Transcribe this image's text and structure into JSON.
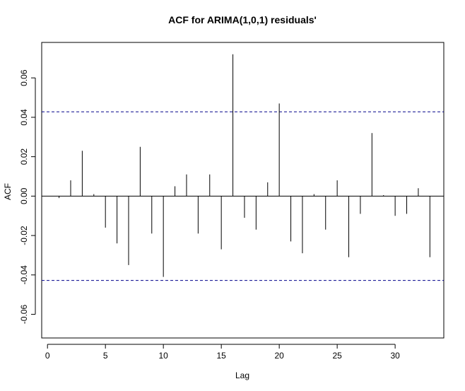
{
  "chart_data": {
    "type": "bar",
    "title": "ACF for ARIMA(1,0,1) residuals'",
    "xlabel": "Lag",
    "ylabel": "ACF",
    "xlim": [
      -0.5,
      34.2
    ],
    "ylim": [
      -0.072,
      0.078
    ],
    "xticks": [
      0,
      5,
      10,
      15,
      20,
      25,
      30
    ],
    "yticks": [
      -0.06,
      -0.04,
      -0.02,
      0.0,
      0.02,
      0.04,
      0.06
    ],
    "ytick_labels": [
      "-0.06",
      "-0.04",
      "-0.02",
      "0.00",
      "0.02",
      "0.04",
      "0.06"
    ],
    "grid": false,
    "confidence_bound": 0.0428,
    "lags": [
      1,
      2,
      3,
      4,
      5,
      6,
      7,
      8,
      9,
      10,
      11,
      12,
      13,
      14,
      15,
      16,
      17,
      18,
      19,
      20,
      21,
      22,
      23,
      24,
      25,
      26,
      27,
      28,
      29,
      30,
      31,
      32,
      33
    ],
    "values": [
      -0.001,
      0.008,
      0.023,
      0.001,
      -0.016,
      -0.024,
      -0.035,
      0.025,
      -0.019,
      -0.041,
      0.005,
      0.011,
      -0.019,
      0.011,
      -0.027,
      0.072,
      -0.011,
      -0.017,
      0.007,
      0.047,
      -0.023,
      -0.029,
      0.001,
      -0.017,
      0.008,
      -0.031,
      -0.009,
      0.032,
      0.0005,
      -0.01,
      -0.009,
      0.004,
      -0.031
    ],
    "colors": {
      "bars": "#000000",
      "bounds": "#00008b",
      "zero_line": "#000000",
      "frame": "#000000"
    }
  }
}
